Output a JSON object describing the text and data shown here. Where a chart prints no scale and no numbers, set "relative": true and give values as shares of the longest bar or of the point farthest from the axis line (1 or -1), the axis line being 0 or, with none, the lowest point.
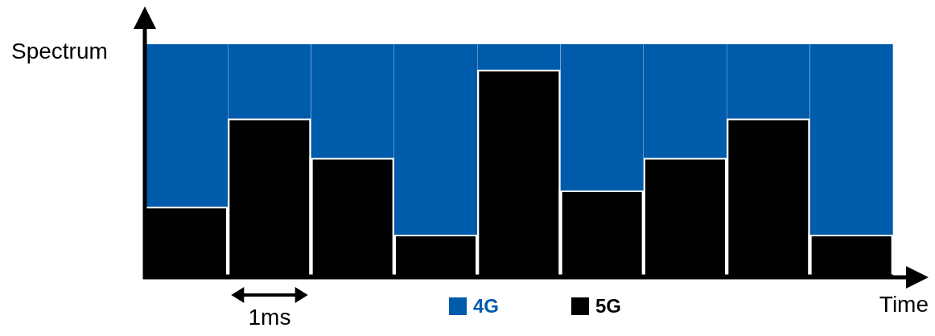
{
  "chart_data": {
    "type": "bar",
    "stacked": true,
    "relative": true,
    "xlabel": "Time",
    "ylabel": "Spectrum",
    "categories": [
      null,
      null,
      null,
      null,
      null,
      null,
      null,
      null,
      null
    ],
    "series": [
      {
        "name": "5G",
        "color": "#000000",
        "values": [
          0.3,
          0.68,
          0.51,
          0.18,
          0.89,
          0.37,
          0.51,
          0.68,
          0.18
        ]
      },
      {
        "name": "4G",
        "color": "#005bab",
        "values": [
          0.7,
          0.32,
          0.49,
          0.82,
          0.11,
          0.63,
          0.49,
          0.32,
          0.82
        ]
      }
    ],
    "annotations": [
      "1ms"
    ],
    "legend": "bottom",
    "grid": false
  }
}
